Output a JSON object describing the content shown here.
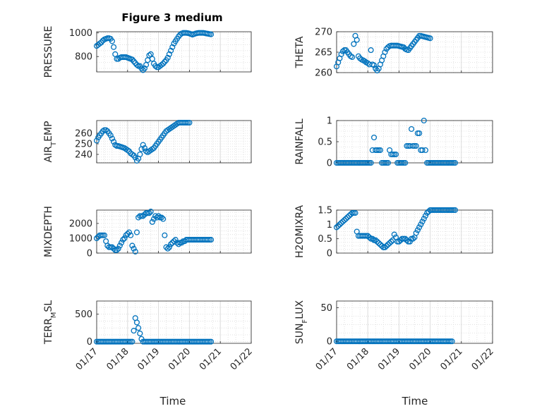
{
  "figure": {
    "title": "Figure 3 medium",
    "xlabel": "Time",
    "x_tick_labels": [
      "01/17",
      "01/18",
      "01/19",
      "01/20",
      "01/21",
      "01/22"
    ],
    "marker_color": "#0072BD",
    "grid_color": "#dcdcdc"
  },
  "chart_data": [
    {
      "type": "scatter",
      "name": "PRESSURE",
      "ylabel": "PRESSURE",
      "xlim": [
        "01/17",
        "01/22"
      ],
      "ylim": [
        670,
        1010
      ],
      "yticks": [
        800,
        1000
      ],
      "ytick_labels": [
        "800",
        "1000"
      ],
      "x": [
        17.0,
        17.05,
        17.1,
        17.15,
        17.2,
        17.25,
        17.3,
        17.35,
        17.4,
        17.45,
        17.5,
        17.55,
        17.6,
        17.65,
        17.7,
        17.75,
        17.8,
        17.85,
        17.9,
        17.95,
        18.0,
        18.05,
        18.1,
        18.15,
        18.2,
        18.25,
        18.3,
        18.35,
        18.4,
        18.45,
        18.5,
        18.55,
        18.6,
        18.65,
        18.7,
        18.75,
        18.8,
        18.85,
        18.9,
        18.95,
        19.0,
        19.05,
        19.1,
        19.15,
        19.2,
        19.25,
        19.3,
        19.35,
        19.4,
        19.45,
        19.5,
        19.55,
        19.6,
        19.65,
        19.7,
        19.75,
        19.8,
        19.85,
        19.9,
        19.95,
        20.0,
        20.05,
        20.1,
        20.15,
        20.2,
        20.25,
        20.3,
        20.35,
        20.4,
        20.45,
        20.5,
        20.55,
        20.6,
        20.65,
        20.7
      ],
      "y": [
        890,
        900,
        910,
        920,
        935,
        945,
        950,
        955,
        955,
        950,
        930,
        880,
        820,
        780,
        780,
        790,
        795,
        795,
        795,
        795,
        790,
        785,
        780,
        775,
        760,
        745,
        730,
        720,
        720,
        700,
        685,
        700,
        730,
        770,
        810,
        820,
        780,
        740,
        720,
        710,
        710,
        720,
        730,
        740,
        755,
        770,
        790,
        820,
        850,
        880,
        910,
        930,
        950,
        970,
        985,
        995,
        1000,
        1000,
        1000,
        998,
        995,
        990,
        985,
        990,
        995,
        998,
        1000,
        1000,
        1000,
        1000,
        998,
        995,
        993,
        990,
        988
      ]
    },
    {
      "type": "scatter",
      "name": "THETA",
      "ylabel": "THETA",
      "xlim": [
        "01/17",
        "01/22"
      ],
      "ylim": [
        260,
        270
      ],
      "yticks": [
        260,
        265,
        270
      ],
      "ytick_labels": [
        "260",
        "265",
        "270"
      ],
      "x": [
        17.0,
        17.05,
        17.1,
        17.15,
        17.2,
        17.25,
        17.3,
        17.35,
        17.4,
        17.45,
        17.5,
        17.55,
        17.6,
        17.65,
        17.7,
        17.75,
        17.8,
        17.85,
        17.9,
        17.95,
        18.0,
        18.05,
        18.1,
        18.15,
        18.2,
        18.25,
        18.3,
        18.35,
        18.4,
        18.45,
        18.5,
        18.55,
        18.6,
        18.65,
        18.7,
        18.75,
        18.8,
        18.85,
        18.9,
        18.95,
        19.0,
        19.05,
        19.1,
        19.15,
        19.2,
        19.25,
        19.3,
        19.35,
        19.4,
        19.45,
        19.5,
        19.55,
        19.6,
        19.65,
        19.7,
        19.75,
        19.8,
        19.85,
        19.9,
        19.95,
        20.0
      ],
      "y": [
        261.5,
        262.5,
        263.5,
        264.5,
        265.2,
        265.5,
        265.5,
        265.0,
        264.5,
        264.0,
        263.8,
        267.0,
        269.0,
        268.0,
        264.0,
        263.5,
        263.2,
        263.0,
        262.8,
        262.5,
        262.3,
        262.0,
        265.5,
        262.0,
        261.8,
        261.0,
        260.5,
        261.0,
        262.0,
        263.0,
        264.0,
        265.0,
        265.8,
        266.2,
        266.5,
        266.6,
        266.6,
        266.6,
        266.6,
        266.6,
        266.5,
        266.4,
        266.3,
        266.2,
        265.8,
        265.6,
        265.5,
        266.0,
        266.5,
        267.0,
        267.5,
        268.0,
        268.5,
        269.0,
        269.0,
        268.9,
        268.8,
        268.7,
        268.6,
        268.5,
        268.4
      ]
    },
    {
      "type": "scatter",
      "name": "AIR_TEMP",
      "ylabel": "AIR_TEMP",
      "xlim": [
        "01/17",
        "01/22"
      ],
      "ylim": [
        232,
        272
      ],
      "yticks": [
        240,
        250,
        260
      ],
      "ytick_labels": [
        "240",
        "250",
        "260"
      ],
      "x": [
        17.0,
        17.05,
        17.1,
        17.15,
        17.2,
        17.25,
        17.3,
        17.35,
        17.4,
        17.45,
        17.5,
        17.55,
        17.6,
        17.65,
        17.7,
        17.75,
        17.8,
        17.85,
        17.9,
        17.95,
        18.0,
        18.05,
        18.1,
        18.15,
        18.2,
        18.25,
        18.3,
        18.35,
        18.4,
        18.45,
        18.5,
        18.55,
        18.6,
        18.65,
        18.7,
        18.75,
        18.8,
        18.85,
        18.9,
        18.95,
        19.0,
        19.05,
        19.1,
        19.15,
        19.2,
        19.25,
        19.3,
        19.35,
        19.4,
        19.45,
        19.5,
        19.55,
        19.6,
        19.65,
        19.7,
        19.75,
        19.8,
        19.85,
        19.9,
        19.95,
        20.0
      ],
      "y": [
        253,
        256,
        258,
        260,
        262,
        263,
        263,
        262,
        260,
        258,
        255,
        252,
        249,
        248,
        248,
        247.5,
        247,
        246.5,
        246,
        245,
        244,
        243,
        241,
        240,
        239,
        237,
        234,
        236,
        240,
        245,
        249,
        246,
        243,
        242,
        243,
        244,
        245,
        246,
        248,
        250,
        252,
        254,
        256,
        258,
        260,
        262,
        263,
        264,
        265,
        266,
        267,
        268,
        269,
        270,
        270,
        270,
        270,
        270,
        270,
        270,
        270
      ]
    },
    {
      "type": "scatter",
      "name": "RAINFALL",
      "ylabel": "RAINFALL",
      "xlim": [
        "01/17",
        "01/22"
      ],
      "ylim": [
        0,
        1
      ],
      "yticks": [
        0,
        0.5,
        1
      ],
      "ytick_labels": [
        "0",
        "0.5",
        "1"
      ],
      "x": [
        17.0,
        17.05,
        17.1,
        17.15,
        17.2,
        17.25,
        17.3,
        17.35,
        17.4,
        17.45,
        17.5,
        17.55,
        17.6,
        17.65,
        17.7,
        17.75,
        17.8,
        17.85,
        17.9,
        17.95,
        18.0,
        18.05,
        18.1,
        18.15,
        18.2,
        18.25,
        18.3,
        18.35,
        18.4,
        18.45,
        18.5,
        18.55,
        18.6,
        18.65,
        18.7,
        18.75,
        18.8,
        18.85,
        18.9,
        18.95,
        19.0,
        19.05,
        19.1,
        19.15,
        19.2,
        19.25,
        19.3,
        19.35,
        19.4,
        19.45,
        19.5,
        19.55,
        19.6,
        19.65,
        19.7,
        19.75,
        19.8,
        19.85,
        19.9,
        19.95,
        20.0,
        20.05,
        20.1,
        20.15,
        20.2,
        20.25,
        20.3,
        20.35,
        20.4,
        20.45,
        20.5,
        20.55,
        20.6,
        20.65,
        20.7,
        20.75,
        20.8
      ],
      "y": [
        0,
        0,
        0,
        0,
        0,
        0,
        0,
        0,
        0,
        0,
        0,
        0,
        0,
        0,
        0,
        0,
        0,
        0,
        0,
        0,
        0,
        0,
        0,
        0.3,
        0.6,
        0.3,
        0.3,
        0.3,
        0.3,
        0,
        0,
        0,
        0,
        0,
        0.3,
        0.2,
        0.2,
        0.2,
        0.2,
        0,
        0,
        0,
        0,
        0,
        0,
        0.4,
        0.4,
        0.4,
        0.8,
        0.4,
        0.4,
        0.4,
        0.7,
        0.7,
        0.3,
        0.3,
        1.0,
        0.3,
        0,
        0,
        0,
        0,
        0,
        0,
        0,
        0,
        0,
        0,
        0,
        0,
        0,
        0,
        0,
        0,
        0,
        0,
        0
      ]
    },
    {
      "type": "scatter",
      "name": "MIXDEPTH",
      "ylabel": "MIXDEPTH",
      "xlim": [
        "01/17",
        "01/22"
      ],
      "ylim": [
        0,
        2900
      ],
      "yticks": [
        0,
        1000,
        2000
      ],
      "ytick_labels": [
        "0",
        "1000",
        "2000"
      ],
      "x": [
        17.0,
        17.05,
        17.1,
        17.15,
        17.2,
        17.25,
        17.3,
        17.35,
        17.4,
        17.45,
        17.5,
        17.55,
        17.6,
        17.65,
        17.7,
        17.75,
        17.8,
        17.85,
        17.9,
        17.95,
        18.0,
        18.05,
        18.1,
        18.15,
        18.2,
        18.25,
        18.3,
        18.35,
        18.4,
        18.45,
        18.5,
        18.55,
        18.6,
        18.65,
        18.7,
        18.75,
        18.8,
        18.85,
        18.9,
        18.95,
        19.0,
        19.05,
        19.1,
        19.15,
        19.2,
        19.25,
        19.3,
        19.35,
        19.4,
        19.45,
        19.5,
        19.55,
        19.6,
        19.65,
        19.7,
        19.75,
        19.8,
        19.85,
        19.9,
        19.95,
        20.0,
        20.05,
        20.1,
        20.15,
        20.2,
        20.25,
        20.3,
        20.35,
        20.4,
        20.45,
        20.5,
        20.55,
        20.6,
        20.65,
        20.7
      ],
      "y": [
        1000,
        1100,
        1200,
        1200,
        1200,
        1200,
        800,
        500,
        400,
        400,
        400,
        300,
        200,
        200,
        300,
        500,
        700,
        900,
        1000,
        1200,
        1300,
        1400,
        1200,
        500,
        300,
        100,
        1400,
        2400,
        2500,
        2500,
        2500,
        2600,
        2700,
        2700,
        2700,
        2800,
        2100,
        2300,
        2500,
        2400,
        2500,
        2400,
        2400,
        2300,
        1200,
        400,
        300,
        400,
        600,
        700,
        800,
        900,
        700,
        600,
        700,
        700,
        800,
        800,
        900,
        900,
        900,
        900,
        900,
        900,
        900,
        900,
        900,
        900,
        900,
        900,
        900,
        900,
        900,
        900,
        900
      ]
    },
    {
      "type": "scatter",
      "name": "H2OMIXRA",
      "ylabel": "H2OMIXRA",
      "xlim": [
        "01/17",
        "01/22"
      ],
      "ylim": [
        0,
        1.5
      ],
      "yticks": [
        0,
        0.5,
        1,
        1.5
      ],
      "ytick_labels": [
        "0",
        "0.5",
        "1",
        "1.5"
      ],
      "x": [
        17.0,
        17.05,
        17.1,
        17.15,
        17.2,
        17.25,
        17.3,
        17.35,
        17.4,
        17.45,
        17.5,
        17.55,
        17.6,
        17.65,
        17.7,
        17.75,
        17.8,
        17.85,
        17.9,
        17.95,
        18.0,
        18.05,
        18.1,
        18.15,
        18.2,
        18.25,
        18.3,
        18.35,
        18.4,
        18.45,
        18.5,
        18.55,
        18.6,
        18.65,
        18.7,
        18.75,
        18.8,
        18.85,
        18.9,
        18.95,
        19.0,
        19.05,
        19.1,
        19.15,
        19.2,
        19.25,
        19.3,
        19.35,
        19.4,
        19.45,
        19.5,
        19.55,
        19.6,
        19.65,
        19.7,
        19.75,
        19.8,
        19.85,
        19.9,
        19.95,
        20.0,
        20.05,
        20.1,
        20.15,
        20.2,
        20.25,
        20.3,
        20.35,
        20.4,
        20.45,
        20.5,
        20.55,
        20.6,
        20.65,
        20.7,
        20.75,
        20.8
      ],
      "y": [
        0.9,
        0.95,
        1.0,
        1.05,
        1.1,
        1.15,
        1.2,
        1.25,
        1.3,
        1.35,
        1.4,
        1.4,
        1.4,
        0.75,
        0.6,
        0.6,
        0.6,
        0.6,
        0.6,
        0.6,
        0.6,
        0.55,
        0.5,
        0.5,
        0.45,
        0.45,
        0.4,
        0.35,
        0.3,
        0.25,
        0.2,
        0.2,
        0.25,
        0.3,
        0.35,
        0.4,
        0.45,
        0.65,
        0.55,
        0.4,
        0.4,
        0.45,
        0.5,
        0.5,
        0.5,
        0.45,
        0.4,
        0.4,
        0.5,
        0.5,
        0.55,
        0.7,
        0.8,
        0.9,
        1.0,
        1.1,
        1.2,
        1.3,
        1.4,
        1.45,
        1.5,
        1.5,
        1.5,
        1.5,
        1.5,
        1.5,
        1.5,
        1.5,
        1.5,
        1.5,
        1.5,
        1.5,
        1.5,
        1.5,
        1.5,
        1.5,
        1.5
      ]
    },
    {
      "type": "scatter",
      "name": "TERR_MSL",
      "ylabel": "TERR_MSL",
      "xlim": [
        "01/17",
        "01/22"
      ],
      "ylim": [
        -30,
        740
      ],
      "yticks": [
        0,
        500
      ],
      "ytick_labels": [
        "0",
        "500"
      ],
      "x": [
        17.0,
        17.05,
        17.1,
        17.15,
        17.2,
        17.25,
        17.3,
        17.35,
        17.4,
        17.45,
        17.5,
        17.55,
        17.6,
        17.65,
        17.7,
        17.75,
        17.8,
        17.85,
        17.9,
        17.95,
        18.0,
        18.05,
        18.1,
        18.15,
        18.2,
        18.25,
        18.3,
        18.35,
        18.4,
        18.45,
        18.5,
        18.55,
        18.6,
        18.65,
        18.7,
        18.75,
        18.8,
        18.85,
        18.9,
        18.95,
        19.0,
        19.05,
        19.1,
        19.15,
        19.2,
        19.25,
        19.3,
        19.35,
        19.4,
        19.45,
        19.5,
        19.55,
        19.6,
        19.65,
        19.7,
        19.75,
        19.8,
        19.85,
        19.9,
        19.95,
        20.0,
        20.05,
        20.1,
        20.15,
        20.2,
        20.25,
        20.3,
        20.35,
        20.4,
        20.45,
        20.5,
        20.55,
        20.6,
        20.65,
        20.7
      ],
      "y": [
        0,
        0,
        0,
        0,
        0,
        0,
        0,
        0,
        0,
        0,
        0,
        0,
        0,
        0,
        0,
        0,
        0,
        0,
        0,
        0,
        0,
        0,
        0,
        0,
        200,
        430,
        350,
        250,
        150,
        50,
        0,
        0,
        0,
        0,
        0,
        0,
        0,
        0,
        0,
        0,
        0,
        0,
        0,
        0,
        0,
        0,
        0,
        0,
        0,
        0,
        0,
        0,
        0,
        0,
        0,
        0,
        0,
        0,
        0,
        0,
        0,
        0,
        0,
        0,
        0,
        0,
        0,
        0,
        0,
        0,
        0,
        0,
        0,
        0,
        0
      ]
    },
    {
      "type": "scatter",
      "name": "SUN_FLUX",
      "ylabel": "SUN_FLUX",
      "xlim": [
        "01/17",
        "01/22"
      ],
      "ylim": [
        -3,
        60
      ],
      "yticks": [
        0,
        50
      ],
      "ytick_labels": [
        "0",
        "50"
      ],
      "x": [
        17.0,
        17.05,
        17.1,
        17.15,
        17.2,
        17.25,
        17.3,
        17.35,
        17.4,
        17.45,
        17.5,
        17.55,
        17.6,
        17.65,
        17.7,
        17.75,
        17.8,
        17.85,
        17.9,
        17.95,
        18.0,
        18.05,
        18.1,
        18.15,
        18.2,
        18.25,
        18.3,
        18.35,
        18.4,
        18.45,
        18.5,
        18.55,
        18.6,
        18.65,
        18.7,
        18.75,
        18.8,
        18.85,
        18.9,
        18.95,
        19.0,
        19.05,
        19.1,
        19.15,
        19.2,
        19.25,
        19.3,
        19.35,
        19.4,
        19.45,
        19.5,
        19.55,
        19.6,
        19.65,
        19.7,
        19.75,
        19.8,
        19.85,
        19.9,
        19.95,
        20.0,
        20.05,
        20.1,
        20.15,
        20.2,
        20.25,
        20.3,
        20.35,
        20.4,
        20.45,
        20.5,
        20.55,
        20.6,
        20.65,
        20.7
      ],
      "y": [
        0,
        0,
        0,
        0,
        0,
        0,
        0,
        0,
        0,
        0,
        0,
        0,
        0,
        0,
        0,
        0,
        0,
        0,
        0,
        0,
        0,
        0,
        0,
        0,
        0,
        0,
        0,
        0,
        0,
        0,
        0,
        0,
        0,
        0,
        0,
        0,
        0,
        0,
        0,
        0,
        0,
        0,
        0,
        0,
        0,
        0,
        0,
        0,
        0,
        0,
        0,
        0,
        0,
        0,
        0,
        0,
        0,
        0,
        0,
        0,
        0,
        0,
        0,
        0,
        0,
        0,
        0,
        0,
        0,
        0,
        0,
        0,
        0,
        0,
        0
      ]
    }
  ]
}
